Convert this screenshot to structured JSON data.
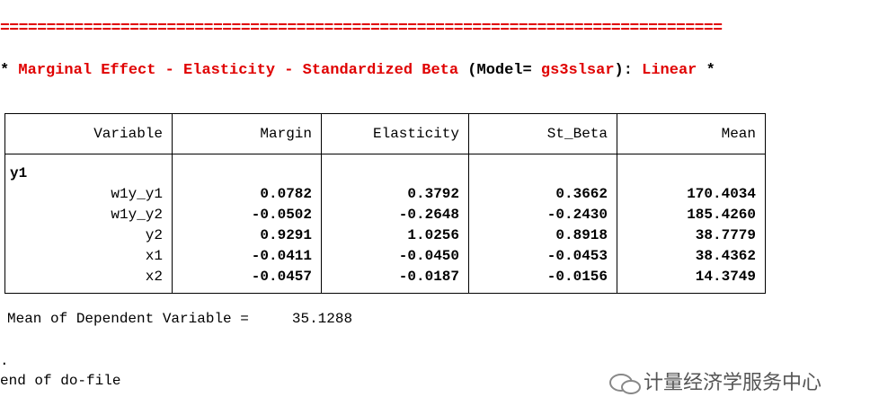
{
  "separator": "==============================================================================",
  "heading": {
    "star_open": "*",
    "title": "Marginal Effect - Elasticity - Standardized Beta",
    "model_open": "(Model=",
    "model": "gs3slsar",
    "model_close": "):",
    "form": "Linear",
    "star_close": "*"
  },
  "table": {
    "headers": [
      "Variable",
      "Margin",
      "Elasticity",
      "St_Beta",
      "Mean"
    ],
    "group": "y1",
    "rows": [
      [
        "w1y_y1",
        "0.0782",
        "0.3792",
        "0.3662",
        "170.4034"
      ],
      [
        "w1y_y2",
        "-0.0502",
        "-0.2648",
        "-0.2430",
        "185.4260"
      ],
      [
        "y2",
        "0.9291",
        "1.0256",
        "0.8918",
        "38.7779"
      ],
      [
        "x1",
        "-0.0411",
        "-0.0450",
        "-0.0453",
        "38.4362"
      ],
      [
        "x2",
        "-0.0457",
        "-0.0187",
        "-0.0156",
        "14.3749"
      ]
    ]
  },
  "footer": {
    "label": "Mean of Dependent Variable =",
    "value": "35.1288"
  },
  "dot": ".",
  "end": "end of do-file",
  "watermark": "计量经济学服务中心"
}
